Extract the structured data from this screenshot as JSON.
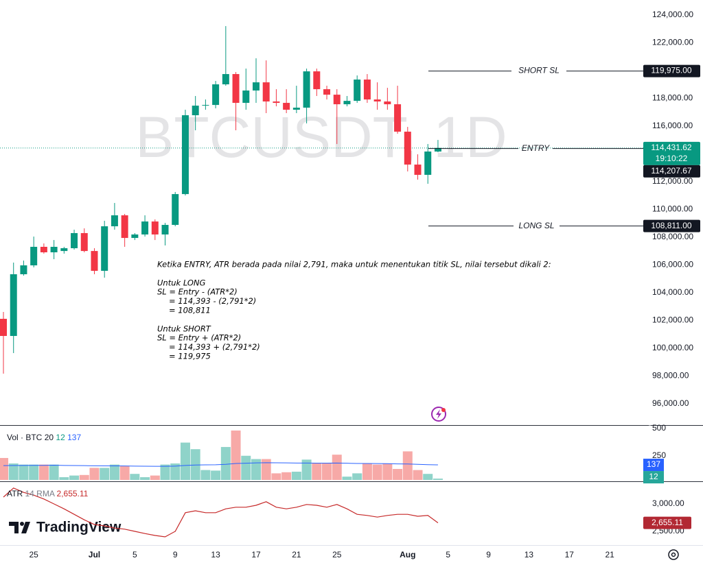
{
  "chart_data": [
    {
      "type": "candlestick",
      "title": "BTCUSDT, 1D",
      "up_color": "#089981",
      "down_color": "#f23645",
      "xlim": [
        -0.34,
        63.86
      ],
      "xticks": [
        {
          "value": 3,
          "label": "25"
        },
        {
          "value": 9,
          "label": "Jul"
        },
        {
          "value": 13,
          "label": "5"
        },
        {
          "value": 17,
          "label": "9"
        },
        {
          "value": 21,
          "label": "13"
        },
        {
          "value": 25,
          "label": "17"
        },
        {
          "value": 29,
          "label": "21"
        },
        {
          "value": 33,
          "label": "25"
        },
        {
          "value": 40,
          "label": "Aug"
        },
        {
          "value": 44,
          "label": "5"
        },
        {
          "value": 48,
          "label": "9"
        },
        {
          "value": 52,
          "label": "13"
        },
        {
          "value": 56,
          "label": "17"
        },
        {
          "value": 60,
          "label": "21"
        }
      ],
      "ylim": [
        94470,
        125090
      ],
      "yticks": [
        {
          "value": 96000,
          "label": "96,000.00"
        },
        {
          "value": 98000,
          "label": "98,000.00"
        },
        {
          "value": 100000,
          "label": "100,000.00"
        },
        {
          "value": 102000,
          "label": "102,000.00"
        },
        {
          "value": 104000,
          "label": "104,000.00"
        },
        {
          "value": 106000,
          "label": "106,000.00"
        },
        {
          "value": 108000,
          "label": "108,000.00"
        },
        {
          "value": 110000,
          "label": "110,000.00"
        },
        {
          "value": 112000,
          "label": "112,000.00"
        },
        {
          "value": 114000,
          "label": "114,000.00"
        },
        {
          "value": 116000,
          "label": "116,000.00"
        },
        {
          "value": 118000,
          "label": "118,000.00"
        },
        {
          "value": 120000,
          "label": "120,000.00"
        },
        {
          "value": 122000,
          "label": "122,000.00"
        },
        {
          "value": 124000,
          "label": "124,000.00"
        }
      ],
      "open": [
        102125,
        100890,
        105335,
        105975,
        107310,
        106915,
        107010,
        107210,
        108300,
        107010,
        105580,
        108790,
        109580,
        107950,
        108200,
        109135,
        108200,
        108890,
        111110,
        116790,
        117480,
        117530,
        119015,
        119755,
        117680,
        118570,
        119160,
        117780,
        117680,
        117185,
        117335,
        119950,
        118665,
        118270,
        117580,
        117825,
        119360,
        117925,
        117780,
        117580,
        115605,
        113235,
        112495,
        114175
      ],
      "high": [
        102620,
        106175,
        106320,
        108050,
        107555,
        107800,
        107310,
        108545,
        108640,
        107210,
        109185,
        110470,
        109680,
        108300,
        109580,
        109285,
        109035,
        111260,
        117185,
        118175,
        117925,
        119260,
        123210,
        119900,
        120150,
        120890,
        120740,
        118665,
        118665,
        118915,
        120150,
        120150,
        118915,
        118665,
        118175,
        119655,
        119755,
        119160,
        118765,
        118915,
        115950,
        113975,
        114715,
        115010
      ],
      "low": [
        98175,
        99655,
        105235,
        105830,
        106820,
        106420,
        106820,
        107110,
        106915,
        105335,
        105090,
        108545,
        107310,
        107800,
        108050,
        107800,
        107410,
        108790,
        111010,
        115705,
        117185,
        117285,
        118915,
        115705,
        117185,
        117680,
        116940,
        117430,
        116940,
        116940,
        116200,
        118175,
        117925,
        114715,
        117430,
        117680,
        117680,
        117185,
        117185,
        115455,
        112740,
        112150,
        111850,
        114125
      ],
      "close": [
        100890,
        105335,
        105975,
        107310,
        106915,
        107310,
        107210,
        108300,
        107010,
        105580,
        108790,
        109580,
        107950,
        108200,
        109135,
        108200,
        108890,
        111110,
        116790,
        117480,
        117530,
        119015,
        119755,
        117680,
        118570,
        119160,
        117780,
        117680,
        117185,
        117335,
        119950,
        118665,
        118270,
        117580,
        117825,
        119360,
        117925,
        117780,
        117580,
        115605,
        113235,
        112495,
        114175,
        114431.62
      ],
      "levels": [
        {
          "name": "SHORT SL",
          "value": 119975,
          "label": "119,975.00"
        },
        {
          "name": "ENTRY",
          "value": 114393
        },
        {
          "name": "LONG SL",
          "value": 108811,
          "label": "108,811.00"
        }
      ],
      "last_price": {
        "value": 114431.62,
        "label": "114,431.62"
      },
      "countdown": "19:10:22",
      "other_price": {
        "value": 114207.67,
        "label": "114,207.67"
      },
      "note": [
        [
          "Ketika ENTRY, ATR berada pada nilai 2,791, maka untuk menentukan titik SL, nilai tersebut dikali 2:"
        ],
        [
          "Untuk LONG",
          "SL = Entry - (ATR*2)",
          "= 114,393 - (2,791*2)",
          "= 108,811"
        ],
        [
          "Untuk SHORT",
          "SL = Entry + (ATR*2)",
          "= 114,393 + (2,791*2)",
          "= 119,975"
        ]
      ],
      "branding": "TradingView"
    },
    {
      "type": "bar",
      "title": "Vol · BTC",
      "ma_length": 20,
      "ma_color": "#2962ff",
      "ylim": [
        0,
        512
      ],
      "yticks": [
        250,
        500
      ],
      "values": [
        200,
        150,
        140,
        140,
        140,
        140,
        25,
        40,
        45,
        110,
        110,
        140,
        125,
        55,
        25,
        40,
        140,
        150,
        340,
        280,
        90,
        85,
        300,
        450,
        220,
        190,
        190,
        60,
        70,
        75,
        185,
        150,
        150,
        230,
        30,
        60,
        150,
        140,
        150,
        100,
        260,
        90,
        55,
        12
      ],
      "ma_values": [
        130,
        131,
        132,
        133,
        133,
        134,
        132,
        131,
        130,
        129,
        128,
        128,
        127,
        126,
        125,
        124,
        124,
        126,
        132,
        136,
        137,
        138,
        142,
        150,
        152,
        155,
        157,
        156,
        155,
        154,
        154,
        153,
        153,
        154,
        152,
        150,
        150,
        149,
        148,
        146,
        145,
        142,
        139,
        137
      ]
    },
    {
      "type": "line",
      "title": "ATR",
      "length": 14,
      "smoothing": "RMA",
      "color": "#c62828",
      "ylim": [
        2250,
        3387.5
      ],
      "yticks": [
        {
          "value": 2500,
          "label": "2,500.00"
        },
        {
          "value": 3000,
          "label": "3,000.00"
        }
      ],
      "values": [
        3125,
        3290,
        3210,
        3160,
        3090,
        3000,
        2910,
        2810,
        2710,
        2625,
        2600,
        2560,
        2540,
        2500,
        2460,
        2425,
        2400,
        2500,
        2840,
        2875,
        2840,
        2840,
        2910,
        2940,
        2940,
        2975,
        3040,
        2940,
        2910,
        2940,
        2990,
        2975,
        2940,
        2990,
        2910,
        2810,
        2790,
        2760,
        2790,
        2810,
        2810,
        2775,
        2790,
        2655.11
      ],
      "last_label": "2,655.11"
    }
  ]
}
